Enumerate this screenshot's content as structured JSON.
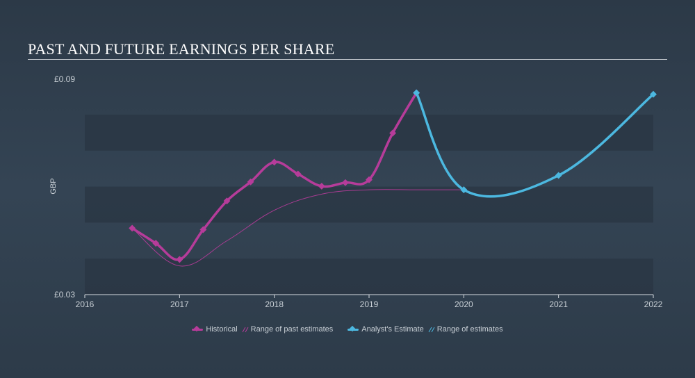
{
  "title": "PAST AND FUTURE EARNINGS PER SHARE",
  "colors": {
    "historical": "#b63c9a",
    "estimate": "#4cb8e0",
    "band": "#2a3643",
    "axis_text": "#c9d0d6"
  },
  "legend": {
    "historical": "Historical",
    "past_range": "Range of past estimates",
    "estimate": "Analyst's Estimate",
    "future_range": "Range of estimates"
  },
  "chart_data": {
    "type": "line",
    "title": "PAST AND FUTURE EARNINGS PER SHARE",
    "ylabel": "GBP",
    "xlabel": "",
    "ylim": [
      0.03,
      0.09
    ],
    "xlim": [
      2016,
      2022
    ],
    "y_tick_labels": [
      "£0.09",
      "£0.03"
    ],
    "y_ticks": [
      0.09,
      0.03
    ],
    "x_ticks": [
      2016,
      2017,
      2018,
      2019,
      2020,
      2021,
      2022
    ],
    "x_tick_labels": [
      "2016",
      "2017",
      "2018",
      "2019",
      "2020",
      "2021",
      "2022"
    ],
    "series": [
      {
        "name": "Historical",
        "points": [
          [
            2016.5,
            0.0485
          ],
          [
            2016.75,
            0.0443
          ],
          [
            2017.0,
            0.0398
          ],
          [
            2017.25,
            0.0481
          ],
          [
            2017.5,
            0.0561
          ],
          [
            2017.75,
            0.0614
          ],
          [
            2018.0,
            0.0669
          ],
          [
            2018.25,
            0.0636
          ],
          [
            2018.5,
            0.0602
          ],
          [
            2018.75,
            0.0612
          ],
          [
            2019.0,
            0.062
          ],
          [
            2019.25,
            0.075
          ],
          [
            2019.5,
            0.0862
          ]
        ]
      },
      {
        "name": "Range of past estimates",
        "points": [
          [
            2016.5,
            0.0485
          ],
          [
            2017.0,
            0.038
          ],
          [
            2017.5,
            0.045
          ],
          [
            2018.0,
            0.0535
          ],
          [
            2018.5,
            0.058
          ],
          [
            2019.0,
            0.0592
          ],
          [
            2019.5,
            0.0592
          ],
          [
            2020.0,
            0.0592
          ]
        ]
      },
      {
        "name": "Analyst's Estimate",
        "points": [
          [
            2019.5,
            0.0862
          ],
          [
            2020.0,
            0.0592
          ],
          [
            2021.0,
            0.0632
          ],
          [
            2022.0,
            0.0858
          ]
        ]
      }
    ]
  }
}
